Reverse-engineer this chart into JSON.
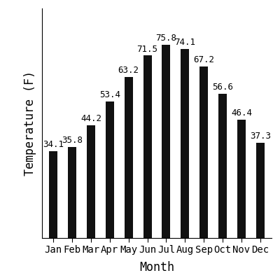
{
  "months": [
    "Jan",
    "Feb",
    "Mar",
    "Apr",
    "May",
    "Jun",
    "Jul",
    "Aug",
    "Sep",
    "Oct",
    "Nov",
    "Dec"
  ],
  "temperatures": [
    34.1,
    35.8,
    44.2,
    53.4,
    63.2,
    71.5,
    75.8,
    74.1,
    67.2,
    56.6,
    46.4,
    37.3
  ],
  "bar_color": "#111111",
  "xlabel": "Month",
  "ylabel": "Temperature (F)",
  "ylim": [
    0,
    90
  ],
  "background_color": "#ffffff",
  "label_fontsize": 12,
  "tick_fontsize": 10,
  "value_fontsize": 9,
  "bar_width": 0.45
}
